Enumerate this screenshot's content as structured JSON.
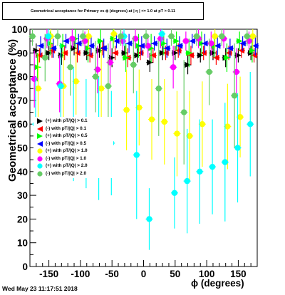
{
  "title": "Geometrical acceptance for Primary vs ϕ (degrees) at | η | <= 1.0 at pT > 0.11",
  "datestamp": "Wed May 23 11:17:51 2018",
  "chart_data": {
    "type": "scatter",
    "xlabel": "ϕ (degrees)",
    "ylabel": "Geometrical acceptance (%)",
    "xlim": [
      -180,
      180
    ],
    "ylim": [
      0,
      100
    ],
    "x_ticks": [
      -150,
      -100,
      -50,
      0,
      50,
      100,
      150
    ],
    "y_ticks": [
      0,
      10,
      20,
      30,
      40,
      50,
      60,
      70,
      80,
      90,
      100
    ],
    "grid": false,
    "legend_position": "left-middle",
    "series": [
      {
        "name": "(+) with pT/|Q| > 0.1",
        "color": "#000000",
        "marker": "triangle-right",
        "x": [
          -170,
          -150,
          -130,
          -110,
          -90,
          -70,
          -50,
          -30,
          -10,
          10,
          30,
          50,
          70,
          90,
          110,
          130,
          150,
          170
        ],
        "y": [
          91,
          90,
          89,
          92,
          90,
          91,
          88,
          90,
          89,
          86,
          90,
          90,
          85,
          89,
          90,
          88,
          89,
          90
        ],
        "err": [
          3,
          3,
          4,
          3,
          3,
          3,
          4,
          3,
          3,
          4,
          3,
          3,
          4,
          3,
          3,
          4,
          3,
          3
        ]
      },
      {
        "name": "(-) with pT/|Q| > 0.1",
        "color": "#ff0000",
        "marker": "triangle-left",
        "x": [
          -165,
          -145,
          -125,
          -105,
          -85,
          -65,
          -45,
          -25,
          -5,
          15,
          35,
          55,
          75,
          95,
          115,
          135,
          155,
          175
        ],
        "y": [
          89,
          91,
          90,
          90,
          89,
          92,
          90,
          88,
          90,
          89,
          90,
          91,
          89,
          90,
          88,
          90,
          91,
          89
        ],
        "err": [
          3,
          3,
          3,
          4,
          3,
          3,
          3,
          4,
          3,
          3,
          3,
          3,
          4,
          3,
          3,
          3,
          3,
          3
        ]
      },
      {
        "name": "(+) with pT/|Q| > 0.5",
        "color": "#00ff00",
        "marker": "triangle-right",
        "x": [
          -168,
          -148,
          -128,
          -108,
          -88,
          -68,
          -48,
          -28,
          -8,
          12,
          32,
          52,
          72,
          92,
          112,
          132,
          152,
          172
        ],
        "y": [
          84,
          94,
          93,
          96,
          92,
          95,
          96,
          88,
          93,
          92,
          94,
          95,
          90,
          94,
          93,
          88,
          95,
          91
        ],
        "err": [
          6,
          5,
          5,
          4,
          6,
          5,
          4,
          6,
          5,
          6,
          5,
          4,
          6,
          5,
          5,
          6,
          4,
          5
        ]
      },
      {
        "name": "(-) with pT/|Q| > 0.5",
        "color": "#0000ff",
        "marker": "triangle-left",
        "x": [
          -163,
          -143,
          -123,
          -103,
          -83,
          -63,
          -43,
          -23,
          -3,
          17,
          37,
          57,
          77,
          97,
          117,
          137,
          157,
          177
        ],
        "y": [
          93,
          92,
          95,
          94,
          93,
          92,
          95,
          94,
          93,
          94,
          92,
          93,
          95,
          94,
          93,
          92,
          94,
          93
        ],
        "err": [
          4,
          4,
          3,
          4,
          4,
          4,
          3,
          4,
          4,
          3,
          4,
          4,
          3,
          4,
          4,
          4,
          3,
          4
        ]
      },
      {
        "name": "(+) with pT/|Q| > 1.0",
        "color": "#ffff00",
        "marker": "circle",
        "x": [
          -167,
          -147,
          -127,
          -107,
          -87,
          -67,
          -47,
          -27,
          -7,
          13,
          33,
          53,
          73,
          93,
          113,
          133,
          153,
          173
        ],
        "y": [
          75,
          97,
          76,
          78,
          97,
          75,
          98,
          66,
          67,
          62,
          61,
          56,
          55,
          60,
          97,
          59,
          63,
          97
        ],
        "err": [
          15,
          5,
          15,
          14,
          5,
          16,
          4,
          17,
          16,
          17,
          18,
          18,
          19,
          18,
          5,
          18,
          17,
          5
        ]
      },
      {
        "name": "(-) with pT/|Q| > 1.0",
        "color": "#ff00ff",
        "marker": "circle",
        "x": [
          -173,
          -153,
          -133,
          -113,
          -93,
          -73,
          -53,
          -33,
          -13,
          7,
          27,
          47,
          67,
          87,
          107,
          127,
          147,
          167
        ],
        "y": [
          79,
          96,
          77,
          96,
          95,
          83,
          86,
          95,
          96,
          93,
          96,
          84,
          95,
          96,
          94,
          96,
          82,
          95
        ],
        "err": [
          12,
          4,
          12,
          4,
          4,
          10,
          9,
          4,
          4,
          5,
          4,
          9,
          4,
          4,
          5,
          4,
          10,
          4
        ]
      },
      {
        "name": "(+) with pT/|Q| > 2.0",
        "color": "#00ffff",
        "marker": "circle",
        "x": [
          -171,
          -151,
          -131,
          -111,
          -91,
          -71,
          -51,
          -31,
          -11,
          9,
          29,
          49,
          69,
          89,
          109,
          129,
          149,
          169
        ],
        "y": [
          60,
          97,
          76,
          60,
          56,
          54,
          52,
          97,
          47,
          20,
          98,
          31,
          36,
          40,
          42,
          44,
          50,
          60
        ],
        "err": [
          20,
          4,
          18,
          24,
          23,
          26,
          22,
          4,
          27,
          13,
          4,
          15,
          22,
          22,
          20,
          25,
          23,
          22
        ]
      },
      {
        "name": "(-) with pT/|Q| > 2.0",
        "color": "#66cc66",
        "marker": "circle",
        "x": [
          -176,
          -156,
          -136,
          -116,
          -96,
          -76,
          -56,
          -36,
          -16,
          4,
          24,
          44,
          64,
          84,
          104,
          124,
          144,
          164
        ],
        "y": [
          97,
          88,
          97,
          84,
          97,
          80,
          76,
          97,
          85,
          97,
          75,
          97,
          65,
          97,
          82,
          97,
          72,
          97
        ],
        "err": [
          4,
          10,
          4,
          12,
          4,
          15,
          18,
          4,
          12,
          4,
          20,
          4,
          22,
          4,
          14,
          4,
          22,
          4
        ]
      }
    ]
  }
}
